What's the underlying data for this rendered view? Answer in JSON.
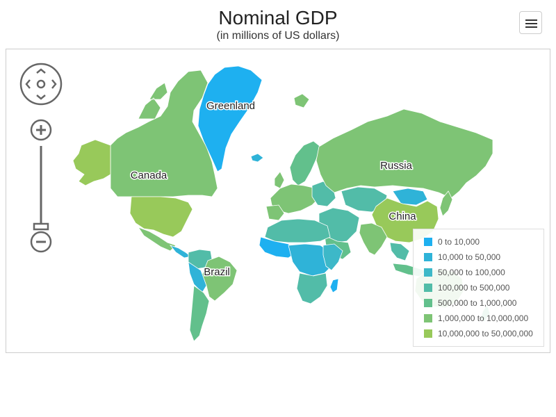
{
  "header": {
    "title": "Nominal GDP",
    "subtitle": "(in millions of US dollars)"
  },
  "menu": {
    "icon": "hamburger-menu-icon"
  },
  "navigation": {
    "pan_icon": "pan-arrows-icon",
    "zoom_in_icon": "zoom-in-icon",
    "zoom_out_icon": "zoom-out-icon"
  },
  "map": {
    "labels": {
      "greenland": "Greenland",
      "canada": "Canada",
      "russia": "Russia",
      "china": "China",
      "brazil": "Brazil"
    }
  },
  "legend": {
    "items": [
      {
        "label": "0 to 10,000",
        "color": "#1eb0f0"
      },
      {
        "label": "10,000 to 50,000",
        "color": "#2fb3d8"
      },
      {
        "label": "50,000 to 100,000",
        "color": "#3db8c8"
      },
      {
        "label": "100,000 to 500,000",
        "color": "#52bca8"
      },
      {
        "label": "500,000 to 1,000,000",
        "color": "#62c08c"
      },
      {
        "label": "1,000,000 to 10,000,000",
        "color": "#7ec475"
      },
      {
        "label": "10,000,000 to 50,000,000",
        "color": "#98c95a"
      }
    ]
  }
}
